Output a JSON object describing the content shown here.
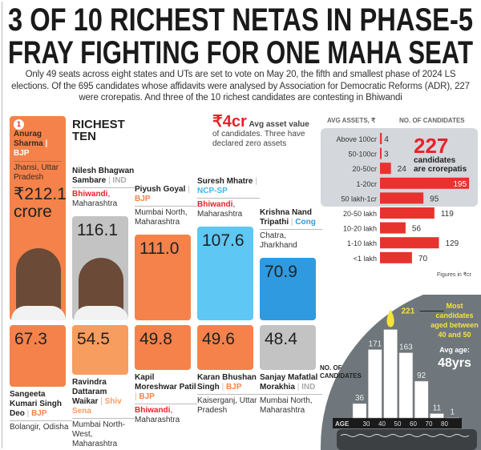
{
  "title": "3 OF 10 RICHEST NETAS IN PHASE-5 FRAY FIGHTING FOR ONE MAHA SEAT",
  "subtitle": "Only 49 seats across eight states and UTs are set to vote on May 20, the fifth and smallest phase of 2024 LS elections. Of the 695 candidates whose affidavits were analysed by Association for Democratic Reforms (ADR), 227 were crorepatis. And three of the 10 richest candidates are contesting in Bhiwandi",
  "richest_heading": "RICHEST TEN",
  "avg_asset": {
    "value": "₹4cr",
    "label_bold": "Avg asset value",
    "label": "of candidates. Three have declared zero assets"
  },
  "rank_badge": "1",
  "top_unit": "crore",
  "candidates": [
    {
      "name": "Anurag Sharma",
      "party": "BJP",
      "place_hl": "",
      "place": "Jhansi, Uttar Pradesh",
      "value": "₹212.1"
    },
    {
      "name": "Nilesh Bhagwan Sambare",
      "party": "IND",
      "place_hl": "Bhiwandi",
      "place": ", Maharashtra",
      "value": "116.1"
    },
    {
      "name": "Piyush Goyal",
      "party": "BJP",
      "place_hl": "",
      "place": "Mumbai North, Maharashtra",
      "value": "111.0"
    },
    {
      "name": "Suresh Mhatre",
      "party": "NCP-SP",
      "place_hl": "Bhiwandi",
      "place": ", Maharashtra",
      "value": "107.6"
    },
    {
      "name": "Krishna Nand Tripathi",
      "party": "Cong",
      "place_hl": "",
      "place": "Chatra, Jharkhand",
      "value": "70.9"
    },
    {
      "name": "Sangeeta Kumari Singh Deo",
      "party": "BJP",
      "place_hl": "",
      "place": "Bolangir, Odisha",
      "value": "67.3"
    },
    {
      "name": "Ravindra Dattaram Waikar",
      "party": "Shiv Sena",
      "place_hl": "",
      "place": "Mumbai North-West, Maharashtra",
      "value": "54.5"
    },
    {
      "name": "Kapil Moreshwar Patil",
      "party": "BJP",
      "place_hl": "Bhiwandi",
      "place": ", Maharashtra",
      "value": "49.8"
    },
    {
      "name": "Karan Bhushan Singh",
      "party": "BJP",
      "place_hl": "",
      "place": "Kaiserganj, Uttar Pradesh",
      "value": "49.6"
    },
    {
      "name": "Sanjay Mafatlal Morakhia",
      "party": "IND",
      "place_hl": "",
      "place": "Mumbai North, Maharashtra",
      "value": "48.4"
    }
  ],
  "party_colors": {
    "BJP": "#f5824a",
    "IND": "#aaaaaa",
    "NCP-SP": "#3cb8ef",
    "Cong": "#2f9ae0",
    "Shiv Sena": "#f79d5f"
  },
  "chart_data": [
    {
      "type": "bar",
      "orientation": "horizontal",
      "xlabel": "NO. OF CANDIDATES",
      "ylabel": "AVG ASSETS, ₹",
      "categories": [
        "Above 100cr",
        "50-100cr",
        "20-50cr",
        "1-20cr",
        "50 lakh-1cr",
        "20-50 lakh",
        "10-20 lakh",
        "1-10 lakh",
        "<1 lakh"
      ],
      "values": [
        4,
        3,
        24,
        195,
        95,
        119,
        56,
        129,
        70
      ],
      "highlight_callout": {
        "value": "227",
        "text": "candidates are crorepatis"
      },
      "note": "Figures in ₹cr",
      "color": "#e8322e"
    },
    {
      "type": "bar",
      "xlabel": "AGE",
      "ylabel": "NO. OF CANDIDATES",
      "tick_labels": [
        "30",
        "40",
        "50",
        "60",
        "70",
        "80"
      ],
      "categories": [
        "<30",
        "30-40",
        "40-50",
        "50-60",
        "60-70",
        "70-80",
        "80+"
      ],
      "values": [
        36,
        171,
        221,
        163,
        92,
        11,
        1
      ],
      "annotation": "Most candidates aged between 40 and 50",
      "avg_label": "Avg age:",
      "avg_value": "48yrs",
      "highlight_color": "#f4e43a"
    }
  ]
}
